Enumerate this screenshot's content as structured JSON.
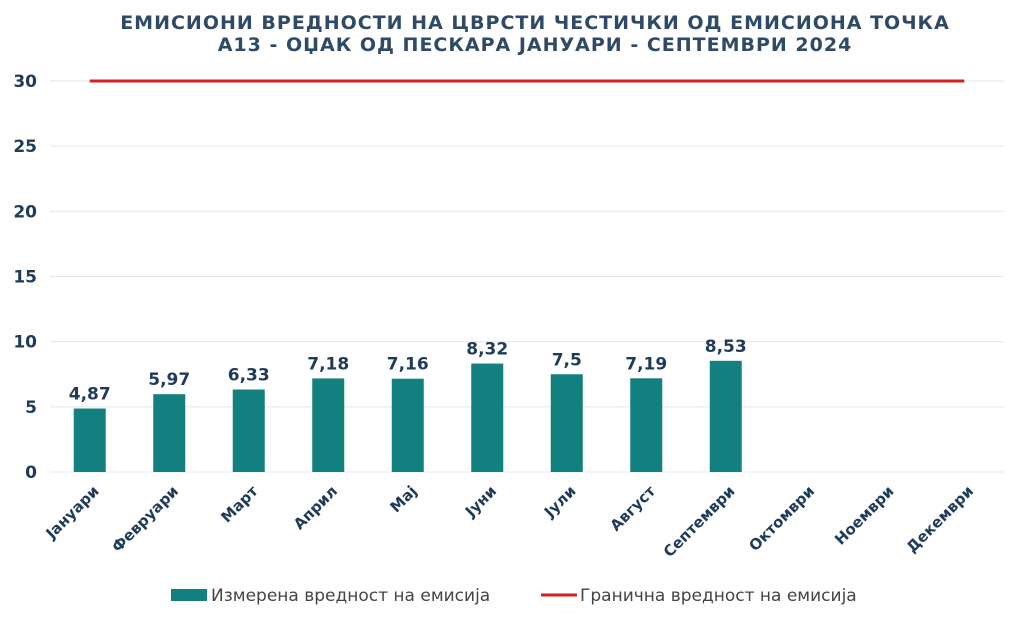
{
  "chart_data": {
    "type": "bar",
    "title_lines": [
      "ЕМИСИОНИ ВРЕДНОСТИ НА ЦВРСТИ ЧЕСТИЧКИ ОД ЕМИСИОНА ТОЧКА",
      "А13 - ОЏАК ОД ПЕСКАРА ЈАНУАРИ - СЕПТЕМВРИ 2024"
    ],
    "categories": [
      "Јануари",
      "Февруари",
      "Март",
      "Април",
      "Мај",
      "Јуни",
      "Јули",
      "Август",
      "Септември",
      "Октомври",
      "Ноември",
      "Декември"
    ],
    "series": [
      {
        "name": "Измерена вредност на емисија",
        "type": "bar",
        "color": "#12807e",
        "values": [
          4.87,
          5.97,
          6.33,
          7.18,
          7.16,
          8.32,
          7.5,
          7.19,
          8.53,
          null,
          null,
          null
        ],
        "labels": [
          "4,87",
          "5,97",
          "6,33",
          "7,18",
          "7,16",
          "8,32",
          "7,5",
          "7,19",
          "8,53",
          "",
          "",
          ""
        ]
      },
      {
        "name": "Гранична вредност на емисија",
        "type": "line",
        "color": "#d21f1f",
        "values": [
          30,
          30,
          30,
          30,
          30,
          30,
          30,
          30,
          30,
          30,
          30,
          30
        ]
      }
    ],
    "y_ticks": [
      "0",
      "5",
      "10",
      "15",
      "20",
      "25",
      "30"
    ],
    "ylim": [
      0,
      30
    ],
    "xlabel": "",
    "ylabel": "",
    "grid": true,
    "legend_position": "bottom"
  }
}
